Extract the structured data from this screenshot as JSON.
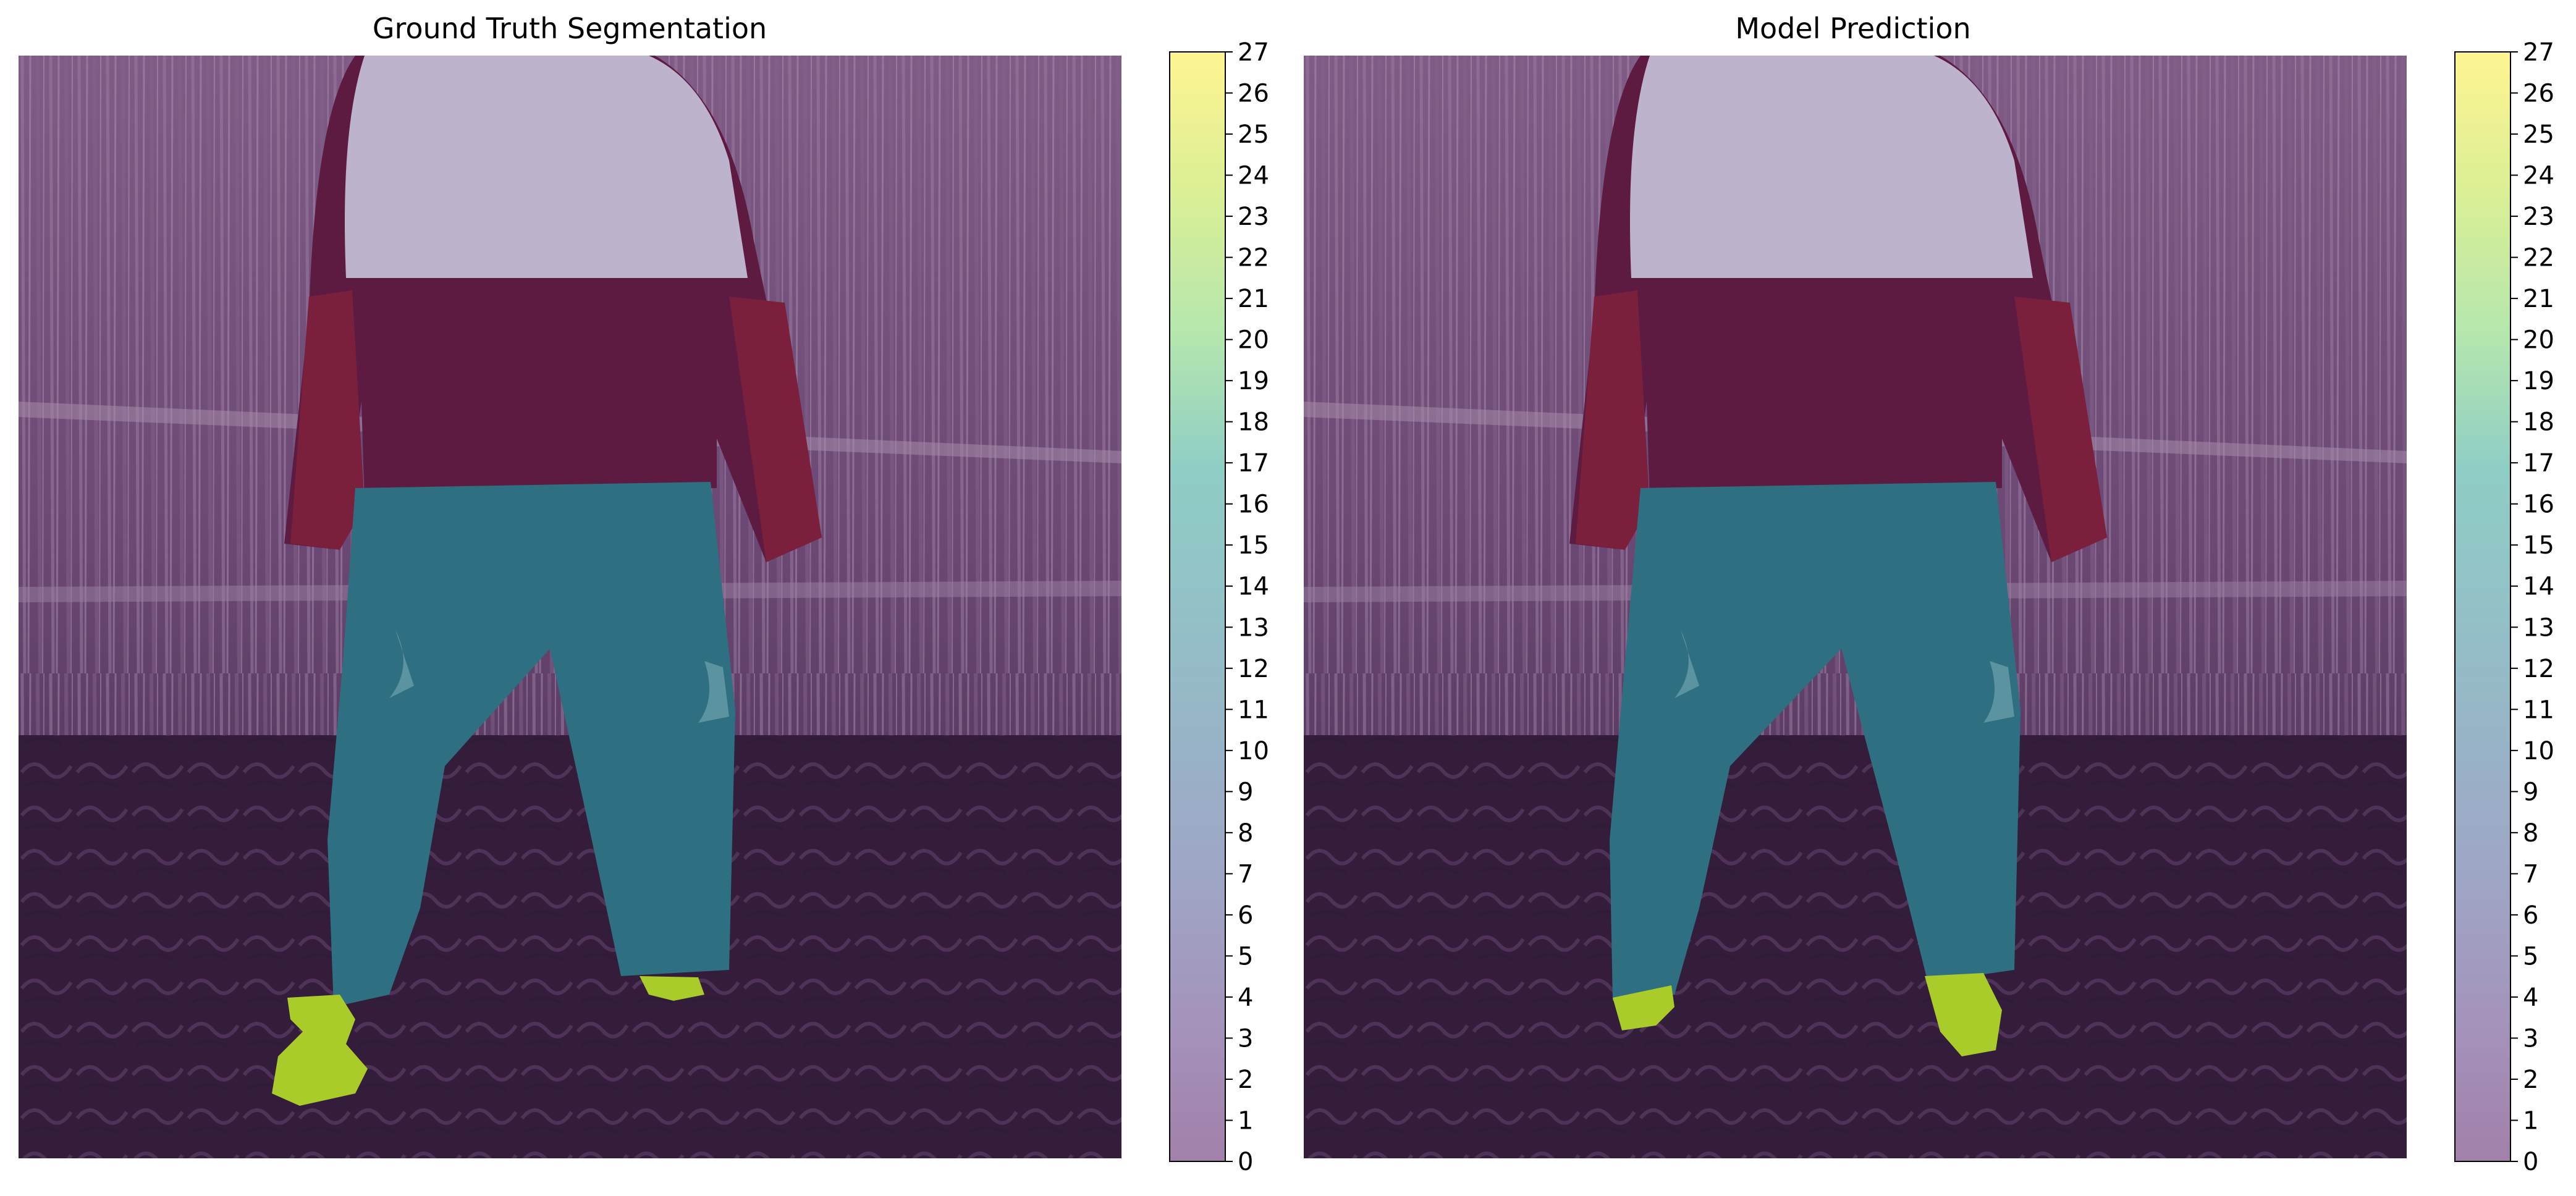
{
  "figure": {
    "panels": [
      {
        "title": "Ground Truth Segmentation"
      },
      {
        "title": "Model Prediction"
      }
    ],
    "colormap": [
      "#440154",
      "#482777",
      "#3f4a8a",
      "#31678e",
      "#26838f",
      "#1f9d8a",
      "#6cce5a",
      "#b6de2b",
      "#fee825"
    ],
    "overlay_alpha": 0.5
  },
  "chart_data": [
    {
      "type": "heatmap",
      "title": "Ground Truth Segmentation",
      "description_of_classes_visible": [
        0,
        5,
        13,
        22
      ],
      "colorbar": {
        "min": 0,
        "max": 27,
        "ticks": [
          0,
          1,
          2,
          3,
          4,
          5,
          6,
          7,
          8,
          9,
          10,
          11,
          12,
          13,
          14,
          15,
          16,
          17,
          18,
          19,
          20,
          21,
          22,
          23,
          24,
          25,
          26,
          27
        ]
      }
    },
    {
      "type": "heatmap",
      "title": "Model Prediction",
      "description_of_classes_visible": [
        0,
        5,
        13,
        22
      ],
      "colorbar": {
        "min": 0,
        "max": 27,
        "ticks": [
          0,
          1,
          2,
          3,
          4,
          5,
          6,
          7,
          8,
          9,
          10,
          11,
          12,
          13,
          14,
          15,
          16,
          17,
          18,
          19,
          20,
          21,
          22,
          23,
          24,
          25,
          26,
          27
        ]
      }
    }
  ]
}
